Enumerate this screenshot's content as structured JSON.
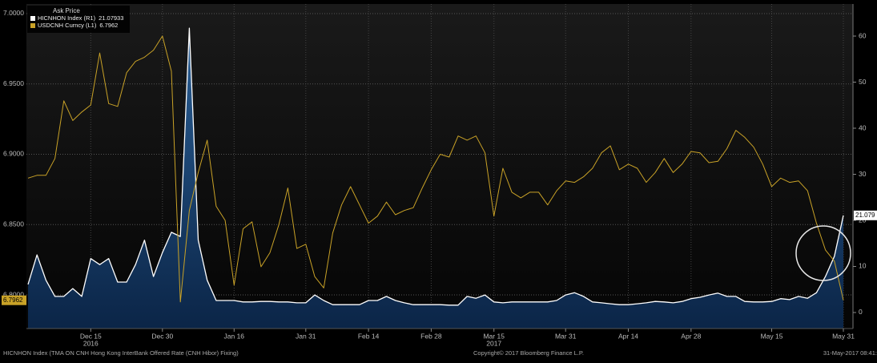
{
  "chart_data": {
    "type": "line",
    "legend_title": "Ask Price",
    "categories": [
      null,
      null,
      null,
      null,
      null,
      null,
      null,
      "Dec 15",
      null,
      null,
      null,
      null,
      null,
      null,
      null,
      "Dec 30",
      null,
      null,
      null,
      null,
      null,
      null,
      null,
      "Jan 16",
      null,
      null,
      null,
      null,
      null,
      null,
      null,
      "Jan 31",
      null,
      null,
      null,
      null,
      null,
      null,
      "Feb 14",
      null,
      null,
      null,
      null,
      null,
      null,
      "Feb 28",
      null,
      null,
      null,
      null,
      null,
      null,
      "Mar 15",
      null,
      null,
      null,
      null,
      null,
      null,
      null,
      "Mar 31",
      null,
      null,
      null,
      null,
      null,
      null,
      "Apr 14",
      null,
      null,
      null,
      null,
      null,
      null,
      "Apr 28",
      null,
      null,
      null,
      null,
      null,
      null,
      null,
      null,
      "May 15",
      null,
      null,
      null,
      null,
      null,
      null,
      null,
      "May 31"
    ],
    "years": [
      {
        "at": "Dec 15",
        "label": "2016"
      },
      {
        "at": "Mar 15",
        "label": "2017"
      }
    ],
    "series": [
      {
        "name": "HICNHON Index  (R1)",
        "color": "#ffffff",
        "fill": "#123a66",
        "axis": "y2",
        "style": "area",
        "end_label": "21.079",
        "values": [
          6.1,
          12.5,
          7.0,
          3.5,
          3.5,
          5.2,
          3.5,
          11.7,
          10.4,
          11.7,
          6.6,
          6.6,
          10.4,
          15.7,
          7.8,
          13.0,
          17.4,
          16.5,
          61.7,
          15.7,
          7.0,
          2.6,
          2.6,
          2.6,
          2.3,
          2.3,
          2.4,
          2.4,
          2.3,
          2.3,
          2.1,
          2.1,
          3.8,
          2.6,
          1.7,
          1.7,
          1.7,
          1.7,
          2.6,
          2.6,
          3.5,
          2.6,
          2.1,
          1.7,
          1.7,
          1.7,
          1.7,
          1.6,
          1.6,
          3.5,
          3.1,
          3.8,
          2.3,
          2.1,
          2.3,
          2.3,
          2.3,
          2.3,
          2.3,
          2.6,
          3.8,
          4.3,
          3.5,
          2.3,
          2.1,
          1.9,
          1.7,
          1.7,
          1.9,
          2.1,
          2.4,
          2.3,
          2.1,
          2.4,
          3.0,
          3.3,
          3.8,
          4.2,
          3.5,
          3.5,
          2.4,
          2.3,
          2.3,
          2.4,
          3.0,
          2.8,
          3.5,
          3.1,
          4.3,
          7.8,
          12.2,
          21.07933
        ]
      },
      {
        "name": "USDCNH Curncy  (L1)",
        "color": "#c9a227",
        "style": "line",
        "values": [
          6.883,
          6.885,
          6.885,
          6.897,
          6.938,
          6.924,
          6.93,
          6.935,
          6.972,
          6.936,
          6.934,
          6.958,
          6.966,
          6.969,
          6.974,
          6.984,
          6.959,
          6.795,
          6.86,
          6.887,
          6.91,
          6.863,
          6.853,
          6.807,
          6.847,
          6.852,
          6.82,
          6.83,
          6.85,
          6.876,
          6.833,
          6.836,
          6.813,
          6.805,
          6.844,
          6.864,
          6.877,
          6.864,
          6.851,
          6.856,
          6.866,
          6.857,
          6.86,
          6.862,
          6.876,
          6.889,
          6.9,
          6.898,
          6.913,
          6.91,
          6.913,
          6.901,
          6.856,
          6.89,
          6.873,
          6.869,
          6.873,
          6.873,
          6.864,
          6.874,
          6.881,
          6.88,
          6.884,
          6.89,
          6.901,
          6.906,
          6.889,
          6.893,
          6.89,
          6.88,
          6.887,
          6.897,
          6.887,
          6.893,
          6.902,
          6.901,
          6.894,
          6.895,
          6.904,
          6.917,
          6.912,
          6.905,
          6.893,
          6.877,
          6.883,
          6.88,
          6.881,
          6.874,
          6.851,
          6.832,
          6.824,
          6.7962
        ]
      }
    ],
    "ylim": [
      6.7761,
      7.0068
    ],
    "yticks": [
      {
        "value": 6.8,
        "label": "6.8000"
      },
      {
        "value": 6.85,
        "label": "6.8500"
      },
      {
        "value": 6.9,
        "label": "6.9000"
      },
      {
        "value": 6.95,
        "label": "6.9500"
      },
      {
        "value": 7.0,
        "label": "7.0000"
      }
    ],
    "y2lim": [
      -3.48,
      66.96
    ],
    "y2ticks": [
      0,
      10,
      20,
      30,
      40,
      50,
      60
    ],
    "grid": true,
    "footer": {
      "left": "HICNHON Index (TMA ON CNH Hong Kong InterBank Offered Rate (CNH Hibor) Fixing)",
      "center": "Copyright© 2017 Bloomberg Finance L.P.",
      "right": "31-May-2017 08:41:"
    }
  }
}
